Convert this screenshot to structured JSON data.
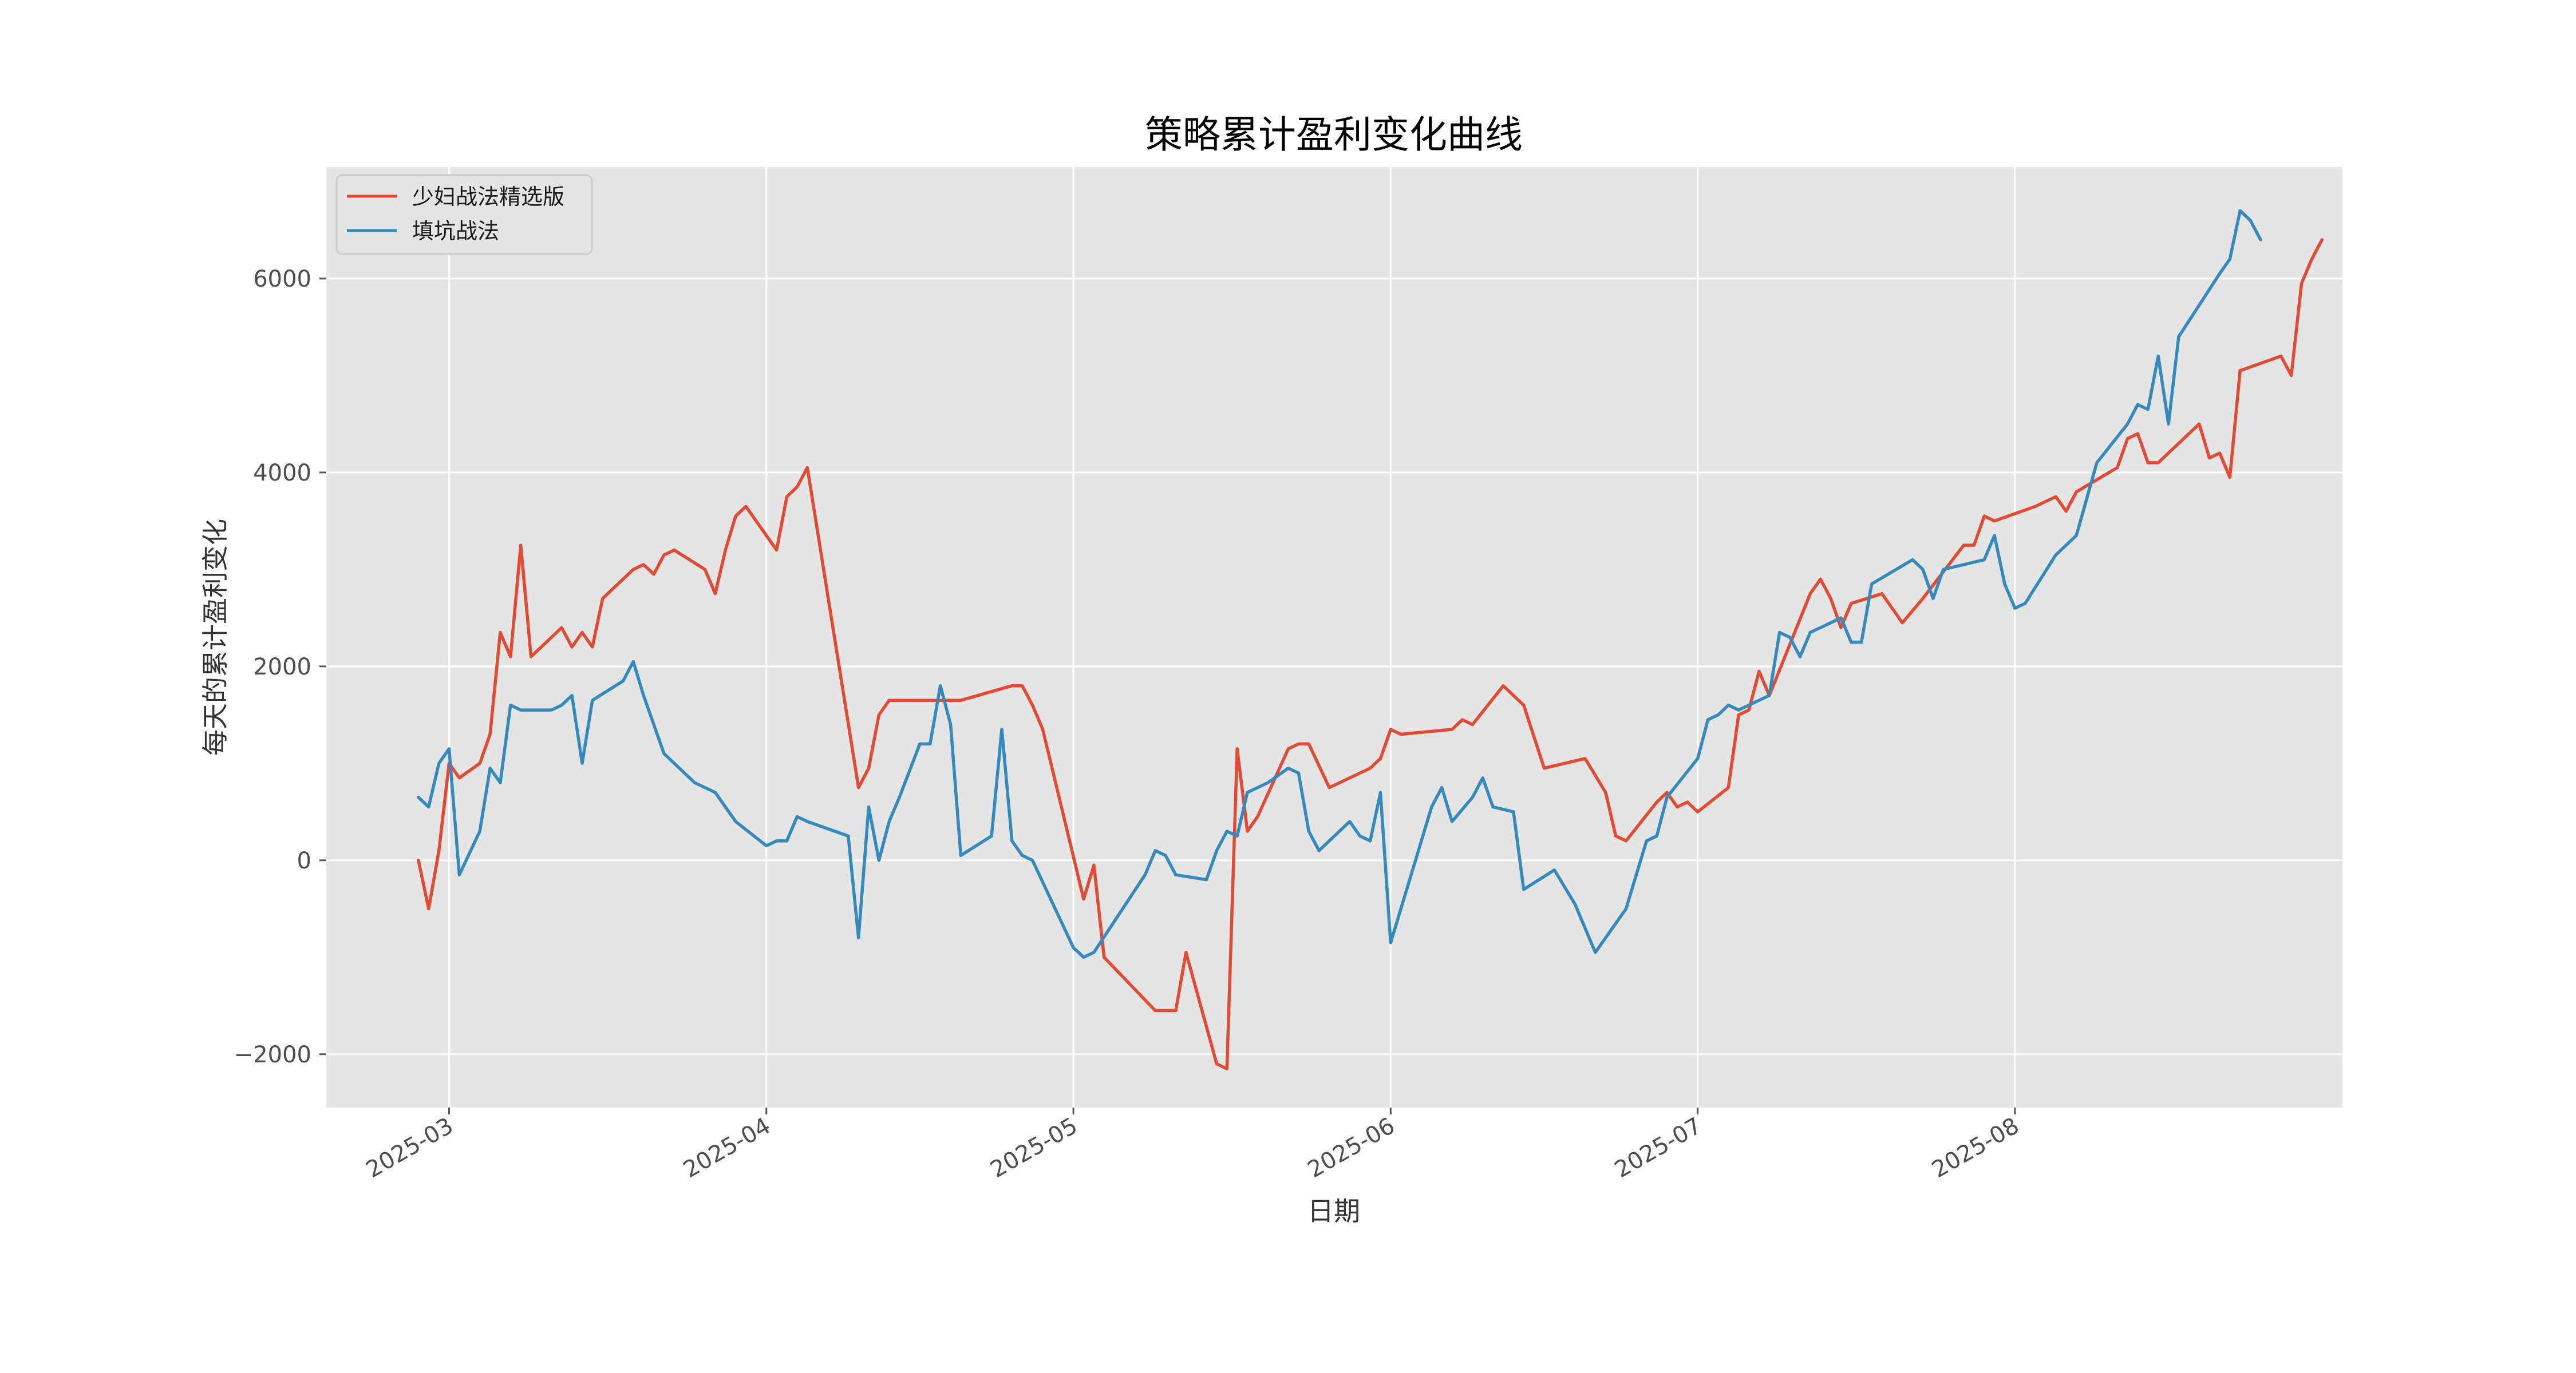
{
  "chart_data": {
    "type": "line",
    "title": "策略累计盈利变化曲线",
    "xlabel": "日期",
    "ylabel": "每天的累计盈利变化",
    "xlim": [
      "2025-02-17",
      "2025-09-02"
    ],
    "ylim": [
      -2550,
      7150
    ],
    "grid": true,
    "legend_position": "top-left",
    "x_ticks": [
      "2025-03-01",
      "2025-04-01",
      "2025-05-01",
      "2025-06-01",
      "2025-07-01",
      "2025-08-01"
    ],
    "x_tick_labels": [
      "2025-03",
      "2025-04",
      "2025-05",
      "2025-06",
      "2025-07",
      "2025-08"
    ],
    "y_ticks": [
      -2000,
      0,
      2000,
      4000,
      6000
    ],
    "y_tick_labels": [
      "−2000",
      "0",
      "2000",
      "4000",
      "6000"
    ],
    "series": [
      {
        "name": "少妇战法精选版",
        "color": "#E24A33",
        "points": [
          [
            "2025-02-26",
            0
          ],
          [
            "2025-02-27",
            -500
          ],
          [
            "2025-02-28",
            100
          ],
          [
            "2025-03-01",
            1000
          ],
          [
            "2025-03-02",
            850
          ],
          [
            "2025-03-04",
            1000
          ],
          [
            "2025-03-05",
            1300
          ],
          [
            "2025-03-06",
            2350
          ],
          [
            "2025-03-07",
            2100
          ],
          [
            "2025-03-08",
            3250
          ],
          [
            "2025-03-09",
            2100
          ],
          [
            "2025-03-12",
            2400
          ],
          [
            "2025-03-13",
            2200
          ],
          [
            "2025-03-14",
            2350
          ],
          [
            "2025-03-15",
            2200
          ],
          [
            "2025-03-16",
            2700
          ],
          [
            "2025-03-19",
            3000
          ],
          [
            "2025-03-20",
            3050
          ],
          [
            "2025-03-21",
            2950
          ],
          [
            "2025-03-22",
            3150
          ],
          [
            "2025-03-23",
            3200
          ],
          [
            "2025-03-26",
            3000
          ],
          [
            "2025-03-27",
            2750
          ],
          [
            "2025-03-28",
            3200
          ],
          [
            "2025-03-29",
            3550
          ],
          [
            "2025-03-30",
            3650
          ],
          [
            "2025-04-02",
            3200
          ],
          [
            "2025-04-03",
            3750
          ],
          [
            "2025-04-04",
            3850
          ],
          [
            "2025-04-05",
            4050
          ],
          [
            "2025-04-10",
            750
          ],
          [
            "2025-04-11",
            950
          ],
          [
            "2025-04-12",
            1500
          ],
          [
            "2025-04-13",
            1650
          ],
          [
            "2025-04-20",
            1650
          ],
          [
            "2025-04-25",
            1800
          ],
          [
            "2025-04-26",
            1800
          ],
          [
            "2025-04-27",
            1600
          ],
          [
            "2025-04-28",
            1350
          ],
          [
            "2025-05-02",
            -400
          ],
          [
            "2025-05-03",
            -50
          ],
          [
            "2025-05-04",
            -1000
          ],
          [
            "2025-05-09",
            -1550
          ],
          [
            "2025-05-11",
            -1550
          ],
          [
            "2025-05-12",
            -950
          ],
          [
            "2025-05-15",
            -2100
          ],
          [
            "2025-05-16",
            -2150
          ],
          [
            "2025-05-17",
            1150
          ],
          [
            "2025-05-18",
            300
          ],
          [
            "2025-05-19",
            450
          ],
          [
            "2025-05-22",
            1150
          ],
          [
            "2025-05-23",
            1200
          ],
          [
            "2025-05-24",
            1200
          ],
          [
            "2025-05-26",
            750
          ],
          [
            "2025-05-30",
            950
          ],
          [
            "2025-05-31",
            1050
          ],
          [
            "2025-06-01",
            1350
          ],
          [
            "2025-06-02",
            1300
          ],
          [
            "2025-06-07",
            1350
          ],
          [
            "2025-06-08",
            1450
          ],
          [
            "2025-06-09",
            1400
          ],
          [
            "2025-06-12",
            1800
          ],
          [
            "2025-06-14",
            1600
          ],
          [
            "2025-06-16",
            950
          ],
          [
            "2025-06-20",
            1050
          ],
          [
            "2025-06-22",
            700
          ],
          [
            "2025-06-23",
            250
          ],
          [
            "2025-06-24",
            200
          ],
          [
            "2025-06-27",
            600
          ],
          [
            "2025-06-28",
            700
          ],
          [
            "2025-06-29",
            550
          ],
          [
            "2025-06-30",
            600
          ],
          [
            "2025-07-01",
            500
          ],
          [
            "2025-07-04",
            750
          ],
          [
            "2025-07-05",
            1500
          ],
          [
            "2025-07-06",
            1550
          ],
          [
            "2025-07-07",
            1950
          ],
          [
            "2025-07-08",
            1700
          ],
          [
            "2025-07-12",
            2750
          ],
          [
            "2025-07-13",
            2900
          ],
          [
            "2025-07-14",
            2700
          ],
          [
            "2025-07-15",
            2400
          ],
          [
            "2025-07-16",
            2650
          ],
          [
            "2025-07-19",
            2750
          ],
          [
            "2025-07-21",
            2450
          ],
          [
            "2025-07-23",
            2700
          ],
          [
            "2025-07-27",
            3250
          ],
          [
            "2025-07-28",
            3250
          ],
          [
            "2025-07-29",
            3550
          ],
          [
            "2025-07-30",
            3500
          ],
          [
            "2025-08-03",
            3650
          ],
          [
            "2025-08-04",
            3700
          ],
          [
            "2025-08-05",
            3750
          ],
          [
            "2025-08-06",
            3600
          ],
          [
            "2025-08-07",
            3800
          ],
          [
            "2025-08-11",
            4050
          ],
          [
            "2025-08-12",
            4350
          ],
          [
            "2025-08-13",
            4400
          ],
          [
            "2025-08-14",
            4100
          ],
          [
            "2025-08-15",
            4100
          ],
          [
            "2025-08-19",
            4500
          ],
          [
            "2025-08-20",
            4150
          ],
          [
            "2025-08-21",
            4200
          ],
          [
            "2025-08-22",
            3950
          ],
          [
            "2025-08-23",
            5050
          ],
          [
            "2025-08-27",
            5200
          ],
          [
            "2025-08-28",
            5000
          ],
          [
            "2025-08-29",
            5950
          ],
          [
            "2025-08-30",
            6200
          ],
          [
            "2025-08-31",
            6400
          ]
        ]
      },
      {
        "name": "填坑战法",
        "color": "#348ABD",
        "points": [
          [
            "2025-02-26",
            650
          ],
          [
            "2025-02-27",
            550
          ],
          [
            "2025-02-28",
            1000
          ],
          [
            "2025-03-01",
            1150
          ],
          [
            "2025-03-02",
            -150
          ],
          [
            "2025-03-04",
            300
          ],
          [
            "2025-03-05",
            950
          ],
          [
            "2025-03-06",
            800
          ],
          [
            "2025-03-07",
            1600
          ],
          [
            "2025-03-08",
            1550
          ],
          [
            "2025-03-11",
            1550
          ],
          [
            "2025-03-12",
            1600
          ],
          [
            "2025-03-13",
            1700
          ],
          [
            "2025-03-14",
            1000
          ],
          [
            "2025-03-15",
            1650
          ],
          [
            "2025-03-18",
            1850
          ],
          [
            "2025-03-19",
            2050
          ],
          [
            "2025-03-20",
            1700
          ],
          [
            "2025-03-21",
            1400
          ],
          [
            "2025-03-22",
            1100
          ],
          [
            "2025-03-24",
            900
          ],
          [
            "2025-03-25",
            800
          ],
          [
            "2025-03-26",
            750
          ],
          [
            "2025-03-27",
            700
          ],
          [
            "2025-03-28",
            550
          ],
          [
            "2025-03-29",
            400
          ],
          [
            "2025-04-01",
            150
          ],
          [
            "2025-04-02",
            200
          ],
          [
            "2025-04-03",
            200
          ],
          [
            "2025-04-04",
            450
          ],
          [
            "2025-04-05",
            400
          ],
          [
            "2025-04-09",
            250
          ],
          [
            "2025-04-10",
            -800
          ],
          [
            "2025-04-11",
            550
          ],
          [
            "2025-04-12",
            0
          ],
          [
            "2025-04-13",
            400
          ],
          [
            "2025-04-14",
            650
          ],
          [
            "2025-04-16",
            1200
          ],
          [
            "2025-04-17",
            1200
          ],
          [
            "2025-04-18",
            1800
          ],
          [
            "2025-04-19",
            1400
          ],
          [
            "2025-04-20",
            50
          ],
          [
            "2025-04-23",
            250
          ],
          [
            "2025-04-24",
            1350
          ],
          [
            "2025-04-25",
            200
          ],
          [
            "2025-04-26",
            50
          ],
          [
            "2025-04-27",
            0
          ],
          [
            "2025-05-01",
            -900
          ],
          [
            "2025-05-02",
            -1000
          ],
          [
            "2025-05-03",
            -950
          ],
          [
            "2025-05-08",
            -150
          ],
          [
            "2025-05-09",
            100
          ],
          [
            "2025-05-10",
            50
          ],
          [
            "2025-05-11",
            -150
          ],
          [
            "2025-05-14",
            -200
          ],
          [
            "2025-05-15",
            100
          ],
          [
            "2025-05-16",
            300
          ],
          [
            "2025-05-17",
            250
          ],
          [
            "2025-05-18",
            700
          ],
          [
            "2025-05-20",
            800
          ],
          [
            "2025-05-22",
            950
          ],
          [
            "2025-05-23",
            900
          ],
          [
            "2025-05-24",
            300
          ],
          [
            "2025-05-25",
            100
          ],
          [
            "2025-05-28",
            400
          ],
          [
            "2025-05-29",
            250
          ],
          [
            "2025-05-30",
            200
          ],
          [
            "2025-05-31",
            700
          ],
          [
            "2025-06-01",
            -850
          ],
          [
            "2025-06-04",
            200
          ],
          [
            "2025-06-05",
            550
          ],
          [
            "2025-06-06",
            750
          ],
          [
            "2025-06-07",
            400
          ],
          [
            "2025-06-09",
            650
          ],
          [
            "2025-06-10",
            850
          ],
          [
            "2025-06-11",
            550
          ],
          [
            "2025-06-13",
            500
          ],
          [
            "2025-06-14",
            -300
          ],
          [
            "2025-06-17",
            -100
          ],
          [
            "2025-06-19",
            -450
          ],
          [
            "2025-06-20",
            -700
          ],
          [
            "2025-06-21",
            -950
          ],
          [
            "2025-06-24",
            -500
          ],
          [
            "2025-06-25",
            -150
          ],
          [
            "2025-06-26",
            200
          ],
          [
            "2025-06-27",
            250
          ],
          [
            "2025-06-28",
            650
          ],
          [
            "2025-07-01",
            1050
          ],
          [
            "2025-07-02",
            1450
          ],
          [
            "2025-07-03",
            1500
          ],
          [
            "2025-07-04",
            1600
          ],
          [
            "2025-07-05",
            1550
          ],
          [
            "2025-07-07",
            1650
          ],
          [
            "2025-07-08",
            1700
          ],
          [
            "2025-07-09",
            2350
          ],
          [
            "2025-07-10",
            2300
          ],
          [
            "2025-07-11",
            2100
          ],
          [
            "2025-07-12",
            2350
          ],
          [
            "2025-07-15",
            2500
          ],
          [
            "2025-07-16",
            2250
          ],
          [
            "2025-07-17",
            2250
          ],
          [
            "2025-07-18",
            2850
          ],
          [
            "2025-07-22",
            3100
          ],
          [
            "2025-07-23",
            3000
          ],
          [
            "2025-07-24",
            2700
          ],
          [
            "2025-07-25",
            3000
          ],
          [
            "2025-07-29",
            3100
          ],
          [
            "2025-07-30",
            3350
          ],
          [
            "2025-07-31",
            2850
          ],
          [
            "2025-08-01",
            2600
          ],
          [
            "2025-08-02",
            2650
          ],
          [
            "2025-08-05",
            3150
          ],
          [
            "2025-08-06",
            3250
          ],
          [
            "2025-08-07",
            3350
          ],
          [
            "2025-08-09",
            4100
          ],
          [
            "2025-08-12",
            4500
          ],
          [
            "2025-08-13",
            4700
          ],
          [
            "2025-08-14",
            4650
          ],
          [
            "2025-08-15",
            5200
          ],
          [
            "2025-08-16",
            4500
          ],
          [
            "2025-08-17",
            5400
          ],
          [
            "2025-08-21",
            6050
          ],
          [
            "2025-08-22",
            6200
          ],
          [
            "2025-08-23",
            6700
          ],
          [
            "2025-08-24",
            6600
          ],
          [
            "2025-08-25",
            6400
          ]
        ]
      }
    ]
  }
}
